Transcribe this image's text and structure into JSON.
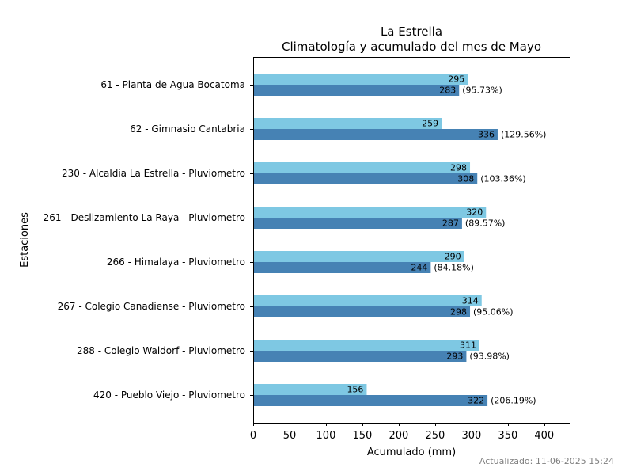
{
  "chart_data": {
    "type": "bar",
    "orientation": "horizontal",
    "title": "La Estrella",
    "subtitle": "Climatología y acumulado del mes de Mayo",
    "xlabel": "Acumulado (mm)",
    "ylabel": "Estaciones",
    "xlim": [
      0,
      435
    ],
    "xticks": [
      0,
      50,
      100,
      150,
      200,
      250,
      300,
      350,
      400
    ],
    "grid": false,
    "categories": [
      "61 - Planta de Agua Bocatoma",
      "62 - Gimnasio Cantabria",
      "230 - Alcaldia La Estrella - Pluviometro",
      "261 - Deslizamiento La Raya - Pluviometro",
      "266 - Himalaya - Pluviometro",
      "267 - Colegio Canadiense - Pluviometro",
      "288 - Colegio Waldorf - Pluviometro",
      "420 - Pueblo Viejo - Pluviometro"
    ],
    "series": [
      {
        "values": [
          295,
          259,
          298,
          320,
          290,
          314,
          311,
          156
        ],
        "color": "#7ec8e3"
      },
      {
        "values": [
          283,
          336,
          308,
          287,
          244,
          298,
          293,
          322
        ],
        "color": "#4682b4"
      }
    ],
    "percent_labels": [
      "(95.73%)",
      "(129.56%)",
      "(103.36%)",
      "(89.57%)",
      "(84.18%)",
      "(95.06%)",
      "(93.98%)",
      "(206.19%)"
    ]
  },
  "footer": "Actualizado: 11-06-2025 15:24"
}
